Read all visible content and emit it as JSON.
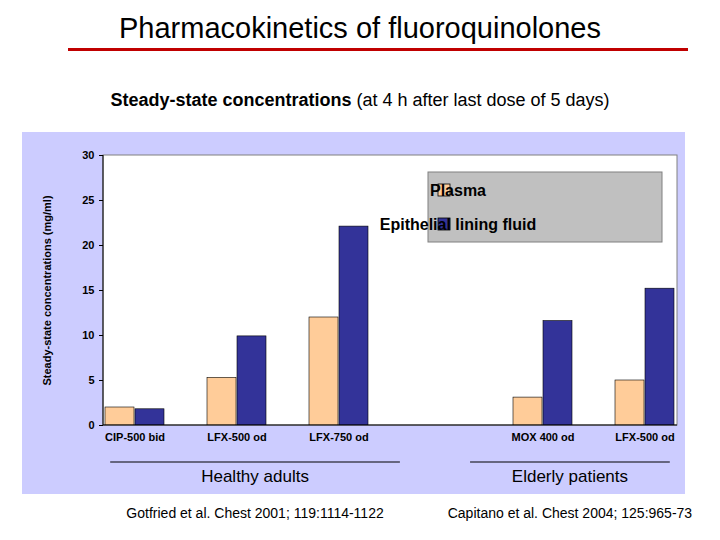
{
  "chart_data": {
    "type": "bar",
    "title": "Pharmacokinetics of fluoroquinolones",
    "subtitle": "Steady-state concentrations (at 4 h after last dose of 5 days)",
    "y_label": "Steady-state concentrations (mg/ml)",
    "categories": [
      "CIP-500 bid",
      "LFX-500 od",
      "LFX-750 od",
      null,
      "MOX 400 od",
      "LFX-500 od"
    ],
    "series": [
      {
        "name": "Plasma",
        "color": "#ffcc99",
        "values": [
          2,
          5.3,
          12,
          null,
          3.1,
          5
        ]
      },
      {
        "name": "Epithelial lining fluid",
        "color": "#333399",
        "values": [
          1.8,
          9.9,
          22.1,
          null,
          11.6,
          15.2
        ]
      }
    ],
    "ylim": [
      0,
      30
    ],
    "yticks": [
      0,
      5,
      10,
      15,
      20,
      25,
      30
    ],
    "grid": false,
    "legend": "top-right",
    "groups": [
      {
        "label": "Healthy adults",
        "citation": "Gotfried et al. Chest 2001; 119:1114-1122"
      },
      {
        "label": "Elderly patients",
        "citation": "Capitano et al. Chest 2004; 125:965-73"
      }
    ]
  }
}
